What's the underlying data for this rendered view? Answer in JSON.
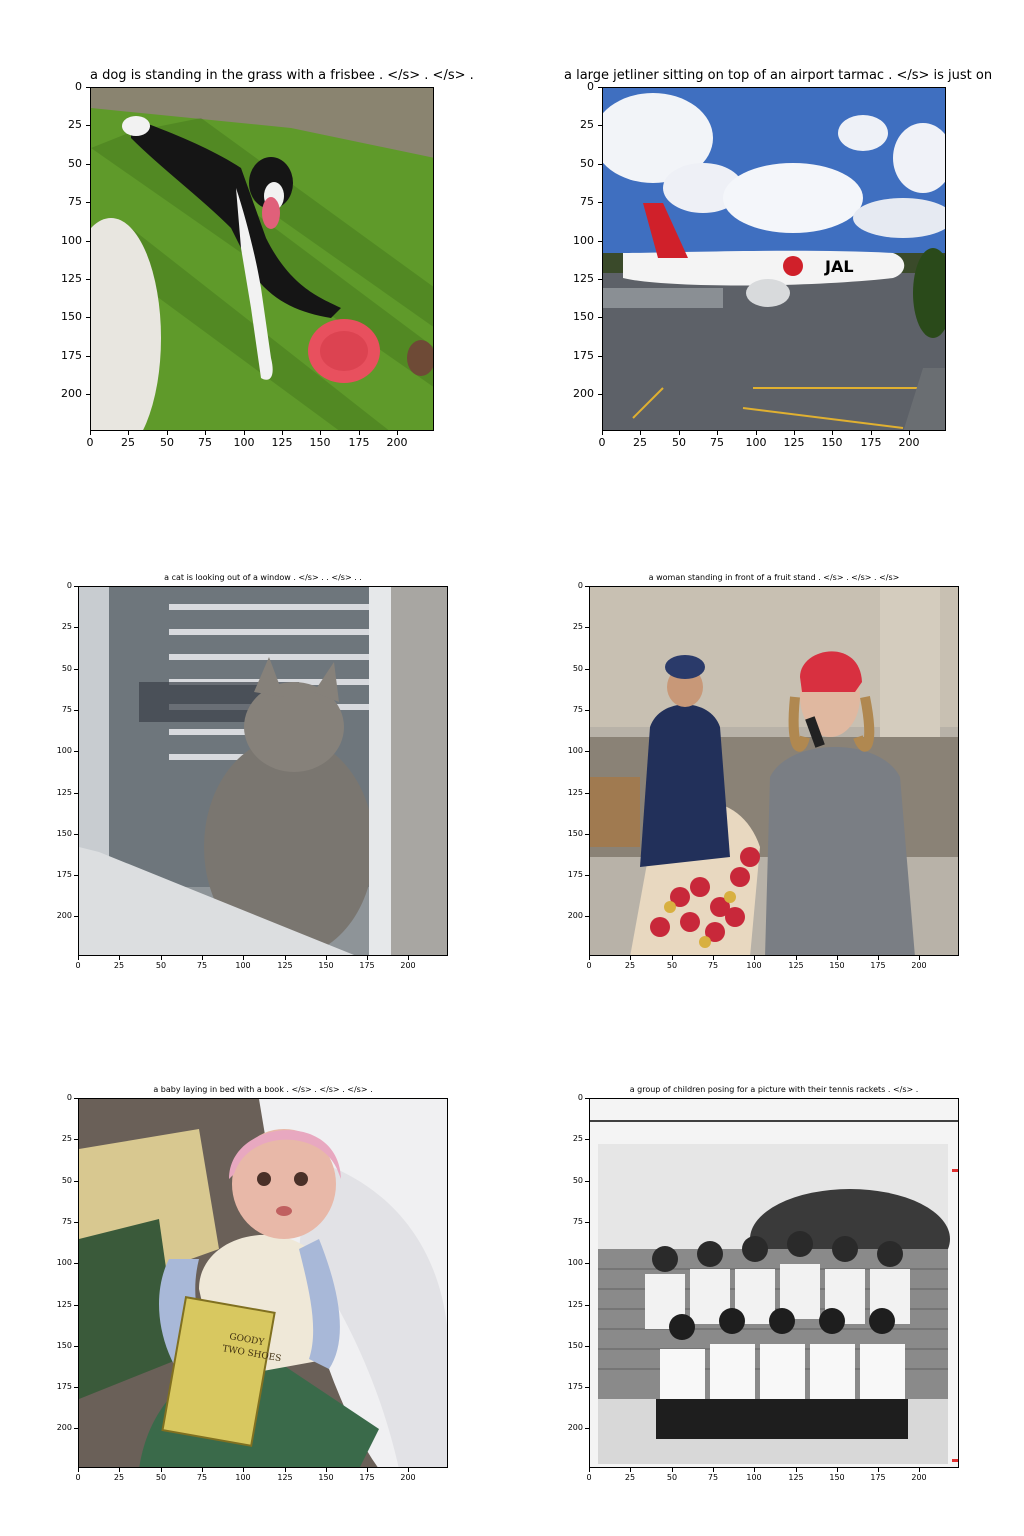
{
  "chart_data": [
    {
      "type": "image",
      "title": "a dog is standing in the grass with a frisbee . </s> . </s> .",
      "xlim": [
        0,
        224
      ],
      "ylim": [
        224,
        0
      ],
      "xticks": [
        0,
        25,
        50,
        75,
        100,
        125,
        150,
        175,
        200
      ],
      "yticks": [
        0,
        25,
        50,
        75,
        100,
        125,
        150,
        175,
        200
      ],
      "scene": "dog-frisbee-grass"
    },
    {
      "type": "image",
      "title": "a large jetliner sitting on top of an airport tarmac . </s> is just on",
      "xlim": [
        0,
        224
      ],
      "ylim": [
        224,
        0
      ],
      "xticks": [
        0,
        25,
        50,
        75,
        100,
        125,
        150,
        175,
        200
      ],
      "yticks": [
        0,
        25,
        50,
        75,
        100,
        125,
        150,
        175,
        200
      ],
      "scene": "jetliner-tarmac"
    },
    {
      "type": "image",
      "title": "a cat is looking out of a window . </s> . . </s> . .",
      "xlim": [
        0,
        224
      ],
      "ylim": [
        224,
        0
      ],
      "xticks": [
        0,
        25,
        50,
        75,
        100,
        125,
        150,
        175,
        200
      ],
      "yticks": [
        0,
        25,
        50,
        75,
        100,
        125,
        150,
        175,
        200
      ],
      "scene": "cat-window"
    },
    {
      "type": "image",
      "title": "a woman standing in front of a fruit stand . </s> . </s> . </s>",
      "xlim": [
        0,
        224
      ],
      "ylim": [
        224,
        0
      ],
      "xticks": [
        0,
        25,
        50,
        75,
        100,
        125,
        150,
        175,
        200
      ],
      "yticks": [
        0,
        25,
        50,
        75,
        100,
        125,
        150,
        175,
        200
      ],
      "scene": "woman-fruit-stand"
    },
    {
      "type": "image",
      "title": "a baby laying in bed with a book . </s> . </s> . </s> .",
      "xlim": [
        0,
        224
      ],
      "ylim": [
        224,
        0
      ],
      "xticks": [
        0,
        25,
        50,
        75,
        100,
        125,
        150,
        175,
        200
      ],
      "yticks": [
        0,
        25,
        50,
        75,
        100,
        125,
        150,
        175,
        200
      ],
      "scene": "doll-bed-book"
    },
    {
      "type": "image",
      "title": "a group of children posing for a picture with their tennis rackets . </s> .",
      "xlim": [
        0,
        224
      ],
      "ylim": [
        224,
        0
      ],
      "xticks": [
        0,
        25,
        50,
        75,
        100,
        125,
        150,
        175,
        200
      ],
      "yticks": [
        0,
        25,
        50,
        75,
        100,
        125,
        150,
        175,
        200
      ],
      "scene": "tennis-team-bw"
    }
  ]
}
